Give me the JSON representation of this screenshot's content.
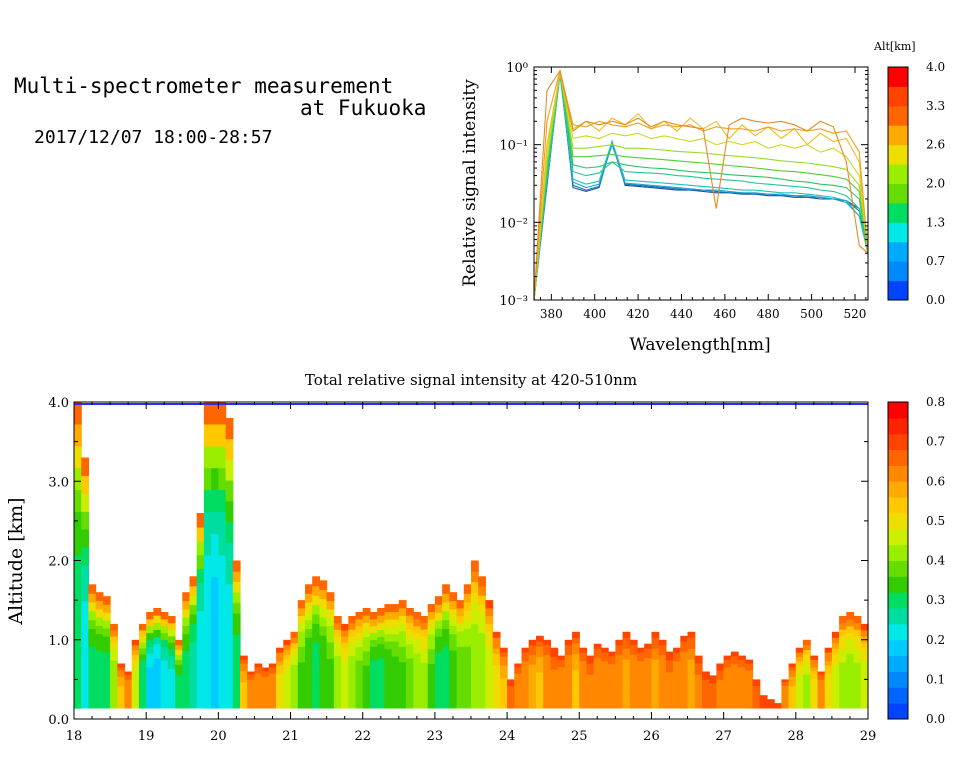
{
  "header": {
    "title_line1": "Multi-spectrometer measurement",
    "title_line2": "at Fukuoka",
    "datetime": "2017/12/07 18:00-28:57"
  },
  "colors": {
    "colorbar": [
      "#0044ff",
      "#0066ff",
      "#0088ff",
      "#00aaff",
      "#00ccff",
      "#00e8e8",
      "#00dda0",
      "#00dd60",
      "#33cc00",
      "#66dd00",
      "#99ee00",
      "#ccee00",
      "#eedd00",
      "#ffc800",
      "#ffaa00",
      "#ff8800",
      "#ff6600",
      "#ff4400",
      "#ff2200",
      "#ff0000"
    ],
    "spectrum_lines": [
      "#1b4f9c",
      "#1177b8",
      "#1ea0d0",
      "#22c0c0",
      "#25c79a",
      "#2ec45f",
      "#55cc33",
      "#99dd22",
      "#ccd822",
      "#e8c020",
      "#f0a020",
      "#e88a20"
    ]
  },
  "chart_data": [
    {
      "type": "line",
      "xlabel": "Wavelength[nm]",
      "ylabel": "Relative signal intensity",
      "yscale": "log",
      "xlim": [
        372,
        526
      ],
      "ylim": [
        0.001,
        1
      ],
      "xticks": [
        380,
        400,
        420,
        440,
        460,
        480,
        500,
        520
      ],
      "yticks": [
        {
          "value": 0.001,
          "label": "10⁻³"
        },
        {
          "value": 0.01,
          "label": "10⁻²"
        },
        {
          "value": 0.1,
          "label": "10⁻¹"
        },
        {
          "value": 1,
          "label": "10⁰"
        }
      ],
      "colorbar": {
        "title": "Alt[km]",
        "range": [
          0,
          4
        ],
        "ticks": [
          "0.0",
          "0.7",
          "1.3",
          "2.0",
          "2.6",
          "3.3",
          "4.0"
        ]
      },
      "x": [
        372,
        378,
        384,
        390,
        396,
        402,
        408,
        414,
        420,
        426,
        432,
        438,
        444,
        450,
        456,
        462,
        468,
        474,
        480,
        486,
        492,
        498,
        504,
        510,
        516,
        522,
        526
      ],
      "series": [
        {
          "altitude": 0.2,
          "values": [
            0.001,
            0.03,
            0.9,
            0.028,
            0.025,
            0.028,
            0.11,
            0.03,
            0.029,
            0.028,
            0.027,
            0.026,
            0.026,
            0.025,
            0.024,
            0.024,
            0.023,
            0.023,
            0.022,
            0.022,
            0.021,
            0.021,
            0.02,
            0.02,
            0.019,
            0.015,
            0.004
          ]
        },
        {
          "altitude": 0.5,
          "values": [
            0.001,
            0.032,
            0.85,
            0.03,
            0.026,
            0.029,
            0.105,
            0.031,
            0.03,
            0.029,
            0.028,
            0.027,
            0.026,
            0.026,
            0.025,
            0.024,
            0.024,
            0.023,
            0.023,
            0.022,
            0.022,
            0.021,
            0.021,
            0.02,
            0.019,
            0.014,
            0.004
          ]
        },
        {
          "altitude": 0.9,
          "values": [
            0.001,
            0.034,
            0.8,
            0.033,
            0.028,
            0.031,
            0.1,
            0.032,
            0.031,
            0.03,
            0.029,
            0.028,
            0.027,
            0.026,
            0.026,
            0.025,
            0.024,
            0.024,
            0.023,
            0.023,
            0.022,
            0.022,
            0.021,
            0.02,
            0.018,
            0.012,
            0.004
          ]
        },
        {
          "altitude": 1.3,
          "values": [
            0.001,
            0.036,
            0.8,
            0.036,
            0.031,
            0.034,
            0.11,
            0.035,
            0.034,
            0.033,
            0.032,
            0.031,
            0.03,
            0.029,
            0.028,
            0.027,
            0.026,
            0.026,
            0.025,
            0.024,
            0.024,
            0.023,
            0.022,
            0.021,
            0.019,
            0.012,
            0.004
          ]
        },
        {
          "altitude": 1.7,
          "values": [
            0.001,
            0.04,
            0.85,
            0.045,
            0.04,
            0.043,
            0.06,
            0.045,
            0.044,
            0.043,
            0.042,
            0.04,
            0.039,
            0.037,
            0.036,
            0.035,
            0.034,
            0.032,
            0.031,
            0.03,
            0.029,
            0.028,
            0.026,
            0.025,
            0.022,
            0.015,
            0.004
          ]
        },
        {
          "altitude": 2.0,
          "values": [
            0.001,
            0.045,
            0.85,
            0.055,
            0.05,
            0.052,
            0.06,
            0.055,
            0.052,
            0.05,
            0.049,
            0.047,
            0.045,
            0.044,
            0.043,
            0.041,
            0.04,
            0.039,
            0.038,
            0.036,
            0.034,
            0.033,
            0.031,
            0.03,
            0.028,
            0.02,
            0.004
          ]
        },
        {
          "altitude": 2.3,
          "values": [
            0.001,
            0.05,
            0.85,
            0.07,
            0.07,
            0.072,
            0.075,
            0.07,
            0.068,
            0.066,
            0.064,
            0.062,
            0.06,
            0.058,
            0.056,
            0.054,
            0.052,
            0.05,
            0.048,
            0.046,
            0.045,
            0.043,
            0.041,
            0.039,
            0.036,
            0.025,
            0.004
          ]
        },
        {
          "altitude": 2.6,
          "values": [
            0.001,
            0.06,
            0.85,
            0.09,
            0.09,
            0.095,
            0.1,
            0.09,
            0.09,
            0.088,
            0.085,
            0.082,
            0.08,
            0.078,
            0.075,
            0.072,
            0.07,
            0.068,
            0.065,
            0.062,
            0.06,
            0.058,
            0.055,
            0.052,
            0.048,
            0.03,
            0.004
          ]
        },
        {
          "altitude": 3.0,
          "values": [
            0.001,
            0.08,
            0.85,
            0.12,
            0.13,
            0.12,
            0.14,
            0.13,
            0.14,
            0.12,
            0.13,
            0.12,
            0.11,
            0.12,
            0.1,
            0.11,
            0.1,
            0.11,
            0.09,
            0.1,
            0.09,
            0.1,
            0.08,
            0.09,
            0.07,
            0.04,
            0.004
          ]
        },
        {
          "altitude": 3.3,
          "values": [
            0.001,
            0.1,
            0.85,
            0.16,
            0.2,
            0.15,
            0.22,
            0.18,
            0.25,
            0.16,
            0.2,
            0.15,
            0.22,
            0.16,
            0.2,
            0.12,
            0.18,
            0.13,
            0.17,
            0.12,
            0.16,
            0.1,
            0.14,
            0.11,
            0.12,
            0.06,
            0.004
          ]
        },
        {
          "altitude": 3.7,
          "values": [
            0.001,
            0.2,
            0.9,
            0.18,
            0.17,
            0.2,
            0.18,
            0.17,
            0.19,
            0.16,
            0.18,
            0.17,
            0.18,
            0.15,
            0.17,
            0.16,
            0.16,
            0.15,
            0.17,
            0.15,
            0.16,
            0.15,
            0.16,
            0.14,
            0.15,
            0.08,
            0.004
          ]
        },
        {
          "altitude": 4.0,
          "values": [
            0.001,
            0.5,
            0.9,
            0.15,
            0.2,
            0.18,
            0.2,
            0.18,
            0.22,
            0.17,
            0.2,
            0.18,
            0.17,
            0.16,
            0.015,
            0.18,
            0.22,
            0.2,
            0.19,
            0.2,
            0.18,
            0.15,
            0.2,
            0.17,
            0.06,
            0.005,
            0.004
          ]
        }
      ]
    },
    {
      "type": "heatmap",
      "title": "Total relative signal intensity at 420-510nm",
      "ylabel": "Altitude [km]",
      "xlim": [
        18,
        29
      ],
      "ylim": [
        0,
        4
      ],
      "xticks": [
        "18",
        "19",
        "20",
        "21",
        "22",
        "23",
        "24",
        "25",
        "26",
        "27",
        "28",
        "29"
      ],
      "yticks": [
        "0.0",
        "1.0",
        "2.0",
        "3.0",
        "4.0"
      ],
      "colorbar": {
        "range": [
          0,
          0.8
        ],
        "ticks": [
          "0.0",
          "0.1",
          "0.2",
          "0.3",
          "0.4",
          "0.5",
          "0.6",
          "0.7",
          "0.8"
        ]
      },
      "columns": [
        {
          "x": 18.0,
          "top": 4.0,
          "core": 0.3
        },
        {
          "x": 18.1,
          "top": 3.3,
          "core": 0.22
        },
        {
          "x": 18.2,
          "top": 1.7,
          "core": 0.3
        },
        {
          "x": 18.3,
          "top": 1.6,
          "core": 0.3
        },
        {
          "x": 18.4,
          "top": 1.55,
          "core": 0.3
        },
        {
          "x": 18.5,
          "top": 1.2,
          "core": 0.4
        },
        {
          "x": 18.6,
          "top": 0.7,
          "core": 0.55
        },
        {
          "x": 18.7,
          "top": 0.6,
          "core": 0.6
        },
        {
          "x": 18.8,
          "top": 1.0,
          "core": 0.45
        },
        {
          "x": 18.9,
          "top": 1.2,
          "core": 0.28
        },
        {
          "x": 19.0,
          "top": 1.35,
          "core": 0.18
        },
        {
          "x": 19.1,
          "top": 1.4,
          "core": 0.16
        },
        {
          "x": 19.2,
          "top": 1.35,
          "core": 0.2
        },
        {
          "x": 19.3,
          "top": 1.3,
          "core": 0.22
        },
        {
          "x": 19.4,
          "top": 1.0,
          "core": 0.3
        },
        {
          "x": 19.5,
          "top": 1.6,
          "core": 0.3
        },
        {
          "x": 19.6,
          "top": 1.8,
          "core": 0.25
        },
        {
          "x": 19.7,
          "top": 2.6,
          "core": 0.2
        },
        {
          "x": 19.8,
          "top": 4.0,
          "core": 0.2
        },
        {
          "x": 19.9,
          "top": 4.0,
          "core": 0.18
        },
        {
          "x": 20.0,
          "top": 4.0,
          "core": 0.2
        },
        {
          "x": 20.1,
          "top": 3.8,
          "core": 0.22
        },
        {
          "x": 20.2,
          "top": 2.0,
          "core": 0.3
        },
        {
          "x": 20.3,
          "top": 0.8,
          "core": 0.55
        },
        {
          "x": 20.4,
          "top": 0.6,
          "core": 0.6
        },
        {
          "x": 20.5,
          "top": 0.7,
          "core": 0.6
        },
        {
          "x": 20.6,
          "top": 0.65,
          "core": 0.6
        },
        {
          "x": 20.7,
          "top": 0.7,
          "core": 0.6
        },
        {
          "x": 20.8,
          "top": 0.9,
          "core": 0.5
        },
        {
          "x": 20.9,
          "top": 1.0,
          "core": 0.45
        },
        {
          "x": 21.0,
          "top": 1.1,
          "core": 0.4
        },
        {
          "x": 21.1,
          "top": 1.5,
          "core": 0.35
        },
        {
          "x": 21.2,
          "top": 1.7,
          "core": 0.32
        },
        {
          "x": 21.3,
          "top": 1.8,
          "core": 0.3
        },
        {
          "x": 21.4,
          "top": 1.75,
          "core": 0.32
        },
        {
          "x": 21.5,
          "top": 1.6,
          "core": 0.35
        },
        {
          "x": 21.6,
          "top": 1.3,
          "core": 0.4
        },
        {
          "x": 21.7,
          "top": 1.2,
          "core": 0.45
        },
        {
          "x": 21.8,
          "top": 1.3,
          "core": 0.4
        },
        {
          "x": 21.9,
          "top": 1.35,
          "core": 0.38
        },
        {
          "x": 22.0,
          "top": 1.4,
          "core": 0.35
        },
        {
          "x": 22.1,
          "top": 1.35,
          "core": 0.3
        },
        {
          "x": 22.2,
          "top": 1.4,
          "core": 0.3
        },
        {
          "x": 22.3,
          "top": 1.45,
          "core": 0.32
        },
        {
          "x": 22.4,
          "top": 1.45,
          "core": 0.33
        },
        {
          "x": 22.5,
          "top": 1.5,
          "core": 0.35
        },
        {
          "x": 22.6,
          "top": 1.4,
          "core": 0.38
        },
        {
          "x": 22.7,
          "top": 1.35,
          "core": 0.4
        },
        {
          "x": 22.8,
          "top": 1.3,
          "core": 0.42
        },
        {
          "x": 22.9,
          "top": 1.45,
          "core": 0.35
        },
        {
          "x": 23.0,
          "top": 1.55,
          "core": 0.3
        },
        {
          "x": 23.1,
          "top": 1.7,
          "core": 0.3
        },
        {
          "x": 23.2,
          "top": 1.6,
          "core": 0.33
        },
        {
          "x": 23.3,
          "top": 1.5,
          "core": 0.36
        },
        {
          "x": 23.4,
          "top": 1.7,
          "core": 0.38
        },
        {
          "x": 23.5,
          "top": 2.0,
          "core": 0.4
        },
        {
          "x": 23.6,
          "top": 1.8,
          "core": 0.4
        },
        {
          "x": 23.7,
          "top": 1.5,
          "core": 0.45
        },
        {
          "x": 23.8,
          "top": 1.1,
          "core": 0.5
        },
        {
          "x": 23.9,
          "top": 0.9,
          "core": 0.55
        },
        {
          "x": 24.0,
          "top": 0.5,
          "core": 0.65
        },
        {
          "x": 24.1,
          "top": 0.7,
          "core": 0.6
        },
        {
          "x": 24.2,
          "top": 0.9,
          "core": 0.6
        },
        {
          "x": 24.3,
          "top": 1.0,
          "core": 0.58
        },
        {
          "x": 24.4,
          "top": 1.05,
          "core": 0.55
        },
        {
          "x": 24.5,
          "top": 1.0,
          "core": 0.6
        },
        {
          "x": 24.6,
          "top": 0.9,
          "core": 0.62
        },
        {
          "x": 24.7,
          "top": 0.8,
          "core": 0.6
        },
        {
          "x": 24.8,
          "top": 1.0,
          "core": 0.6
        },
        {
          "x": 24.9,
          "top": 1.1,
          "core": 0.55
        },
        {
          "x": 25.0,
          "top": 0.9,
          "core": 0.6
        },
        {
          "x": 25.1,
          "top": 0.8,
          "core": 0.62
        },
        {
          "x": 25.2,
          "top": 0.95,
          "core": 0.6
        },
        {
          "x": 25.3,
          "top": 0.9,
          "core": 0.6
        },
        {
          "x": 25.4,
          "top": 0.85,
          "core": 0.6
        },
        {
          "x": 25.5,
          "top": 1.0,
          "core": 0.6
        },
        {
          "x": 25.6,
          "top": 1.1,
          "core": 0.58
        },
        {
          "x": 25.7,
          "top": 1.0,
          "core": 0.6
        },
        {
          "x": 25.8,
          "top": 0.9,
          "core": 0.6
        },
        {
          "x": 25.9,
          "top": 0.95,
          "core": 0.6
        },
        {
          "x": 26.0,
          "top": 1.1,
          "core": 0.58
        },
        {
          "x": 26.1,
          "top": 1.0,
          "core": 0.6
        },
        {
          "x": 26.2,
          "top": 0.85,
          "core": 0.62
        },
        {
          "x": 26.3,
          "top": 0.9,
          "core": 0.6
        },
        {
          "x": 26.4,
          "top": 1.05,
          "core": 0.6
        },
        {
          "x": 26.5,
          "top": 1.1,
          "core": 0.58
        },
        {
          "x": 26.6,
          "top": 0.8,
          "core": 0.62
        },
        {
          "x": 26.7,
          "top": 0.6,
          "core": 0.65
        },
        {
          "x": 26.8,
          "top": 0.55,
          "core": 0.65
        },
        {
          "x": 26.9,
          "top": 0.7,
          "core": 0.62
        },
        {
          "x": 27.0,
          "top": 0.8,
          "core": 0.6
        },
        {
          "x": 27.1,
          "top": 0.85,
          "core": 0.6
        },
        {
          "x": 27.2,
          "top": 0.8,
          "core": 0.6
        },
        {
          "x": 27.3,
          "top": 0.75,
          "core": 0.6
        },
        {
          "x": 27.4,
          "top": 0.5,
          "core": 0.65
        },
        {
          "x": 27.5,
          "top": 0.3,
          "core": 0.68
        },
        {
          "x": 27.6,
          "top": 0.25,
          "core": 0.68
        },
        {
          "x": 27.7,
          "top": 0.2,
          "core": 0.7
        },
        {
          "x": 27.8,
          "top": 0.5,
          "core": 0.6
        },
        {
          "x": 27.9,
          "top": 0.7,
          "core": 0.55
        },
        {
          "x": 28.0,
          "top": 0.9,
          "core": 0.45
        },
        {
          "x": 28.1,
          "top": 1.0,
          "core": 0.42
        },
        {
          "x": 28.2,
          "top": 0.8,
          "core": 0.5
        },
        {
          "x": 28.3,
          "top": 0.6,
          "core": 0.6
        },
        {
          "x": 28.4,
          "top": 0.9,
          "core": 0.5
        },
        {
          "x": 28.5,
          "top": 1.1,
          "core": 0.45
        },
        {
          "x": 28.6,
          "top": 1.3,
          "core": 0.42
        },
        {
          "x": 28.7,
          "top": 1.35,
          "core": 0.4
        },
        {
          "x": 28.8,
          "top": 1.3,
          "core": 0.42
        },
        {
          "x": 28.9,
          "top": 1.2,
          "core": 0.45
        }
      ]
    }
  ]
}
